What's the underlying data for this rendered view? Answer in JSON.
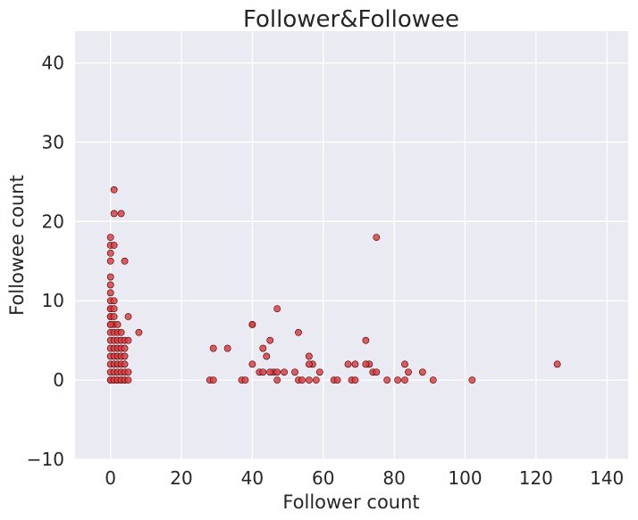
{
  "chart_data": {
    "type": "scatter",
    "title": "Follower&Followee",
    "xlabel": "Follower count",
    "ylabel": "Followee count",
    "xlim": [
      -10,
      146
    ],
    "ylim": [
      -10,
      44
    ],
    "xticks": [
      0,
      20,
      40,
      60,
      80,
      100,
      120,
      140
    ],
    "yticks": [
      -10,
      0,
      10,
      20,
      30,
      40
    ],
    "grid": true,
    "legend": "none",
    "colors": {
      "background": "#eaeaf2",
      "grid": "#ffffff",
      "point_fill": "#e8393d",
      "point_edge": "#2a0a0a"
    },
    "series": [
      {
        "x": [
          1,
          1,
          3,
          0,
          0,
          1,
          0,
          0,
          4,
          5,
          0,
          0,
          0,
          0,
          0,
          0,
          0,
          0,
          1,
          1,
          0,
          1,
          0,
          1,
          2,
          0,
          1,
          2,
          3,
          0,
          1,
          2,
          3,
          4,
          0,
          1,
          2,
          3,
          4,
          0,
          1,
          2,
          3,
          4,
          0,
          1,
          2,
          3,
          4,
          5,
          0,
          1,
          2,
          3,
          4,
          0,
          1,
          2,
          3,
          4,
          5,
          0,
          1,
          2,
          3,
          4,
          5,
          8,
          75,
          47,
          40,
          53,
          56,
          72,
          45,
          43,
          29,
          33,
          44,
          57,
          46,
          40,
          49,
          52,
          56,
          59,
          69,
          73,
          74,
          75,
          83,
          84,
          88,
          67,
          42,
          47,
          28,
          43,
          40,
          29,
          37,
          38,
          45,
          47,
          53,
          54,
          56,
          58,
          63,
          64,
          68,
          69,
          72,
          78,
          81,
          83,
          91,
          102,
          126
        ],
        "y": [
          24,
          21,
          21,
          18,
          17,
          17,
          16,
          15,
          15,
          8,
          13,
          12,
          11,
          10,
          9,
          9,
          8,
          8,
          10,
          9,
          7,
          7,
          6,
          6,
          6,
          5,
          5,
          5,
          5,
          4,
          4,
          4,
          4,
          4,
          3,
          3,
          3,
          3,
          3,
          2,
          2,
          2,
          2,
          2,
          1,
          1,
          1,
          1,
          1,
          1,
          0,
          0,
          0,
          0,
          0,
          7,
          8,
          7,
          6,
          5,
          5,
          0,
          0,
          0,
          0,
          0,
          0,
          6,
          18,
          9,
          7,
          6,
          3,
          5,
          5,
          4,
          4,
          4,
          3,
          2,
          1,
          2,
          1,
          1,
          2,
          1,
          2,
          2,
          1,
          1,
          2,
          1,
          1,
          2,
          1,
          1,
          0,
          1,
          7,
          0,
          0,
          0,
          1,
          0,
          0,
          0,
          0,
          0,
          0,
          0,
          0,
          0,
          2,
          0,
          0,
          0,
          0,
          0,
          2
        ]
      }
    ]
  }
}
